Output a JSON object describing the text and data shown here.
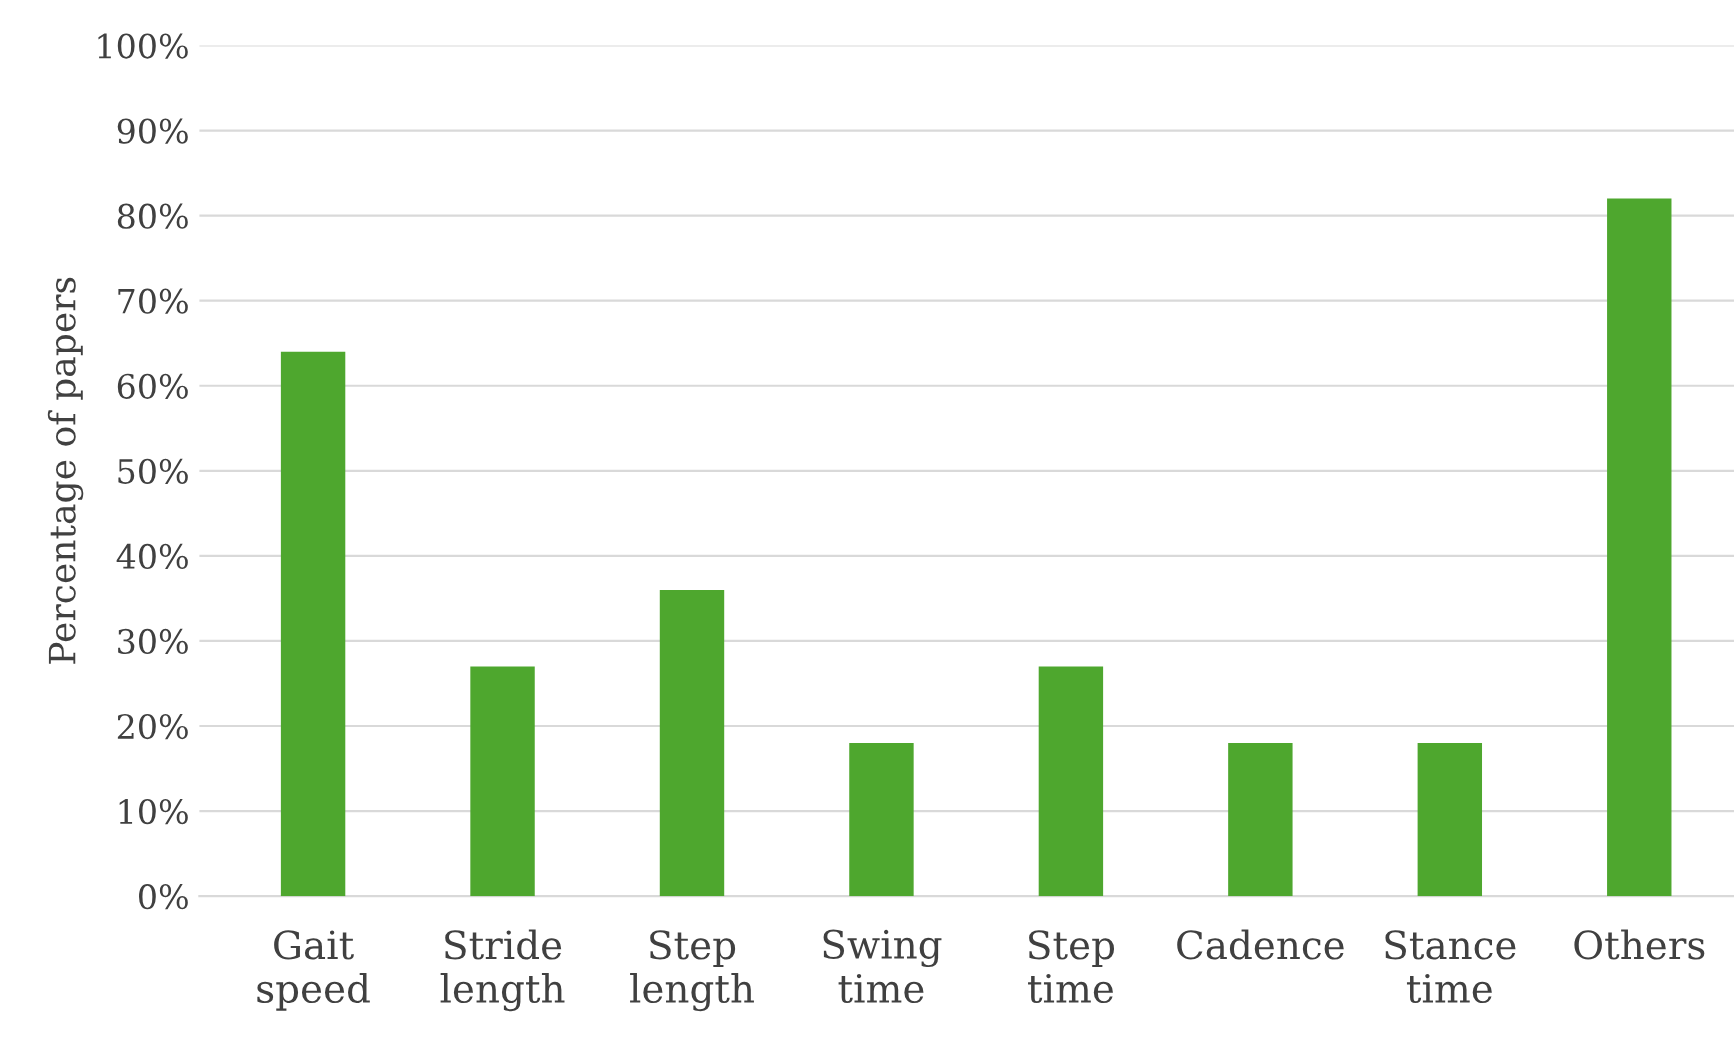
{
  "chart_data": {
    "type": "bar",
    "ylabel": "Percentage of papers",
    "categories": [
      "Gait\nspeed",
      "Stride\nlength",
      "Step\nlength",
      "Swing\ntime",
      "Step\ntime",
      "Cadence",
      "Stance\ntime",
      "Others"
    ],
    "values": [
      64,
      27,
      36,
      18,
      27,
      18,
      18,
      82
    ],
    "color": "#4ea72e",
    "ylim": [
      0,
      100
    ],
    "yticks": [
      {
        "value": 0,
        "label": "0%"
      },
      {
        "value": 10,
        "label": "10%"
      },
      {
        "value": 20,
        "label": "20%"
      },
      {
        "value": 30,
        "label": "30%"
      },
      {
        "value": 40,
        "label": "40%"
      },
      {
        "value": 50,
        "label": "50%"
      },
      {
        "value": 60,
        "label": "60%"
      },
      {
        "value": 70,
        "label": "70%"
      },
      {
        "value": 80,
        "label": "80%"
      },
      {
        "value": 90,
        "label": "90%"
      },
      {
        "value": 100,
        "label": "100%"
      }
    ],
    "grid": "y",
    "legend": false
  }
}
